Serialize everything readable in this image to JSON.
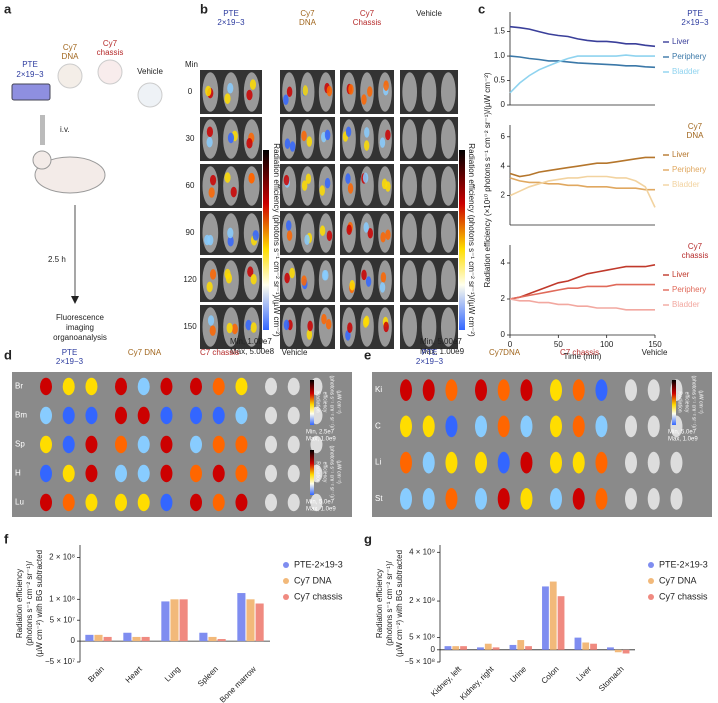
{
  "panel_labels": [
    "a",
    "b",
    "c",
    "d",
    "e",
    "f",
    "g"
  ],
  "schematic": {
    "pte": "PTE",
    "pte_sub": "2×19−3",
    "cy7dna": [
      "Cy7",
      "DNA"
    ],
    "cy7chassis": [
      "Cy7",
      "chassis"
    ],
    "vehicle": "Vehicle",
    "route": "i.v.",
    "time": "2.5 h",
    "readout": [
      "Fluorescence",
      "imaging",
      "organoanalysis"
    ]
  },
  "imaging_b": {
    "groups": [
      [
        "PTE",
        "2×19−3"
      ],
      [
        "Cy7",
        "DNA"
      ],
      [
        "Cy7",
        "Chassis"
      ],
      [
        "Vehicle"
      ]
    ],
    "time_header": "Min",
    "times": [
      "0",
      "30",
      "60",
      "90",
      "120",
      "150"
    ],
    "colorbar_label": "Radiation efficiency (photons s⁻¹ cm⁻² sr⁻¹)/(µW cm⁻²)",
    "scales": [
      [
        "Min, 1.00e7",
        "Max, 5.00e8"
      ],
      [
        "Min, 5.00e7",
        "Max, 1.00e9"
      ]
    ]
  },
  "imaging_d": {
    "groups": [
      [
        "PTE",
        "2×19−3"
      ],
      [
        "Cy7 DNA"
      ],
      [
        "C7 chassis"
      ],
      [
        "Vehicle"
      ]
    ],
    "organs": [
      "Br",
      "Bm",
      "Sp",
      "H",
      "Lu"
    ],
    "colorbar_label": [
      "Radiation",
      "efficiency",
      "(photons s⁻¹ cm⁻² sr⁻¹)/",
      "(µW cm⁻²)"
    ],
    "scales": [
      [
        "Min, 2.5e7",
        "Max, 1.0e9"
      ],
      [
        "Min, 5.0e7",
        "Max, 1.0e9"
      ]
    ]
  },
  "imaging_e": {
    "groups": [
      [
        "PTE",
        "2×19−3"
      ],
      [
        "Cy7DNA"
      ],
      [
        "C7 chassis"
      ],
      [
        "Vehicle"
      ]
    ],
    "organs": [
      "Ki",
      "C",
      "Li",
      "St"
    ],
    "colorbar_label": [
      "Radiation",
      "efficiency",
      "(photons s⁻¹ cm⁻² sr⁻¹)/",
      "(µW cm⁻²)"
    ],
    "scales": [
      [
        "Min, 5.0e7",
        "Max, 1.0e9"
      ]
    ]
  },
  "chart_data": [
    {
      "type": "line",
      "legend_title": [
        "PTE",
        "2×19−3"
      ],
      "x": [
        0,
        10,
        20,
        30,
        40,
        50,
        60,
        70,
        80,
        90,
        100,
        110,
        120,
        130,
        140,
        150
      ],
      "xlim": [
        0,
        150
      ],
      "ylim": [
        0,
        1.9
      ],
      "yticks": [
        0,
        0.5,
        {
          "value": 1,
          "label": "1.0"
        },
        1.5
      ],
      "series": [
        {
          "name": "Liver",
          "color": "#3a3f9a",
          "values": [
            1.6,
            1.58,
            1.55,
            1.5,
            1.45,
            1.42,
            1.4,
            1.35,
            1.32,
            1.3,
            1.3,
            1.28,
            1.25,
            1.25,
            1.22,
            1.2
          ]
        },
        {
          "name": "Periphery",
          "color": "#3b78a8",
          "values": [
            1.0,
            0.98,
            0.95,
            0.93,
            0.9,
            0.9,
            0.88,
            0.86,
            0.85,
            0.84,
            0.83,
            0.82,
            0.8,
            0.8,
            0.78,
            0.77
          ]
        },
        {
          "name": "Bladder",
          "color": "#8fd3ef",
          "values": [
            0.25,
            0.45,
            0.6,
            0.72,
            0.8,
            0.88,
            0.95,
            1.0,
            1.0,
            1.0,
            1.0,
            1.0,
            1.02,
            1.0,
            1.0,
            1.0
          ]
        }
      ]
    },
    {
      "type": "line",
      "legend_title": [
        "Cy7",
        "DNA"
      ],
      "y_label": "Radiation efficiency (×10¹⁰ photons s⁻¹ cm⁻² sr⁻¹)/(µW cm⁻²)",
      "x": [
        0,
        10,
        20,
        30,
        40,
        50,
        60,
        70,
        80,
        90,
        100,
        110,
        120,
        130,
        140,
        150
      ],
      "xlim": [
        0,
        150
      ],
      "ylim": [
        0,
        6.8
      ],
      "yticks": [
        2,
        4,
        6
      ],
      "series": [
        {
          "name": "Liver",
          "color": "#b5762c",
          "values": [
            3.5,
            3.3,
            3.4,
            3.6,
            3.7,
            3.8,
            3.9,
            4.0,
            4.1,
            4.2,
            4.2,
            4.3,
            4.4,
            4.5,
            4.6,
            4.6
          ]
        },
        {
          "name": "Periphery",
          "color": "#e0a860",
          "values": [
            3.2,
            3.0,
            2.9,
            2.9,
            2.8,
            2.8,
            2.7,
            2.7,
            2.6,
            2.6,
            2.6,
            2.5,
            2.5,
            2.5,
            2.4,
            2.4
          ]
        },
        {
          "name": "Bladder",
          "color": "#f2d3a0",
          "values": [
            2.0,
            2.3,
            2.6,
            2.8,
            3.0,
            3.1,
            3.2,
            3.2,
            3.3,
            3.3,
            3.3,
            3.2,
            3.2,
            3.0,
            2.6,
            1.2
          ]
        }
      ]
    },
    {
      "type": "line",
      "legend_title": [
        "Cy7",
        "chassis"
      ],
      "x_label": "Time (min)",
      "x": [
        0,
        10,
        20,
        30,
        40,
        50,
        60,
        70,
        80,
        90,
        100,
        110,
        120,
        130,
        140,
        150
      ],
      "xlim": [
        0,
        150
      ],
      "xticks": [
        0,
        50,
        100,
        150
      ],
      "ylim": [
        0,
        5
      ],
      "yticks": [
        0,
        2,
        4
      ],
      "series": [
        {
          "name": "Liver",
          "color": "#c0392b",
          "values": [
            2.0,
            2.1,
            2.3,
            2.5,
            2.7,
            2.9,
            3.0,
            3.2,
            3.4,
            3.5,
            3.6,
            3.7,
            3.8,
            3.8,
            3.8,
            3.9
          ]
        },
        {
          "name": "Periphery",
          "color": "#e06a5a",
          "values": [
            2.0,
            2.1,
            2.2,
            2.3,
            2.4,
            2.5,
            2.6,
            2.6,
            2.7,
            2.7,
            2.7,
            2.8,
            2.8,
            2.8,
            2.8,
            2.8
          ]
        },
        {
          "name": "Bladder",
          "color": "#f2a8a0",
          "values": [
            2.0,
            1.9,
            1.9,
            1.8,
            1.8,
            1.7,
            1.7,
            1.6,
            1.6,
            1.5,
            1.5,
            1.5,
            1.4,
            1.4,
            1.4,
            1.4
          ]
        }
      ]
    },
    {
      "type": "bar",
      "y_label": [
        "Radiation efficiency",
        "(photons s⁻¹ cm⁻² sr⁻¹)/",
        "(µW cm⁻²) with BG subtracted"
      ],
      "categories": [
        "Brain",
        "Heart",
        "Lung",
        "Spleen",
        "Bone marrow"
      ],
      "ylim": [
        -50000000,
        230000000
      ],
      "yticks": [
        {
          "value": -50000000,
          "label": "−5 × 10⁷"
        },
        0,
        {
          "value": 50000000,
          "label": "5 × 10⁷"
        },
        {
          "value": 100000000,
          "label": "1 × 10⁸"
        },
        {
          "value": 200000000,
          "label": "2 × 10⁸"
        }
      ],
      "series": [
        {
          "name": "PTE-2×19-3",
          "color": "#7f8df0",
          "values": [
            15000000,
            20000000,
            95000000,
            20000000,
            115000000
          ]
        },
        {
          "name": "Cy7 DNA",
          "color": "#f2b97a",
          "values": [
            15000000,
            10000000,
            100000000,
            10000000,
            100000000
          ]
        },
        {
          "name": "Cy7 chassis",
          "color": "#f08a80",
          "values": [
            10000000,
            10000000,
            100000000,
            5000000,
            90000000
          ]
        }
      ]
    },
    {
      "type": "bar",
      "y_label": [
        "Radiation efficiency",
        "(photons s⁻¹ cm⁻² sr⁻¹)/",
        "(µW cm⁻²) with BG subtracted"
      ],
      "categories": [
        "Kidney, left",
        "Kidney, right",
        "Urine",
        "Colon",
        "Liver",
        "Stomach"
      ],
      "ylim": [
        -500000000,
        4300000000
      ],
      "yticks": [
        {
          "value": -500000000,
          "label": "−5 × 10⁸"
        },
        0,
        {
          "value": 500000000,
          "label": "5 × 10⁸"
        },
        {
          "value": 2000000000,
          "label": "2 × 10⁹"
        },
        {
          "value": 4000000000,
          "label": "4 × 10⁹"
        }
      ],
      "series": [
        {
          "name": "PTE-2×19-3",
          "color": "#7f8df0",
          "values": [
            150000000,
            100000000,
            200000000,
            2600000000,
            500000000,
            100000000
          ]
        },
        {
          "name": "Cy7 DNA",
          "color": "#f2b97a",
          "values": [
            150000000,
            250000000,
            400000000,
            2800000000,
            300000000,
            -100000000
          ]
        },
        {
          "name": "Cy7 chassis",
          "color": "#f08a80",
          "values": [
            150000000,
            100000000,
            150000000,
            2200000000,
            250000000,
            -150000000
          ]
        }
      ]
    }
  ]
}
